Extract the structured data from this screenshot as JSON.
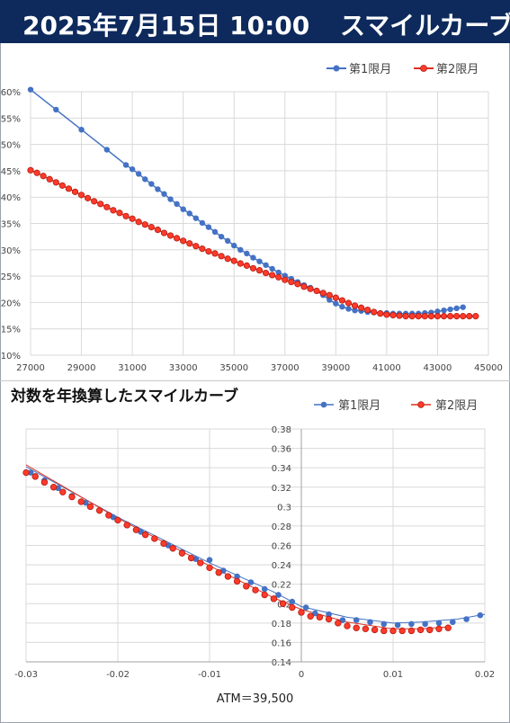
{
  "header": {
    "datetime": "2025年7月15日 10:00",
    "title": "スマイルカーブ"
  },
  "colors": {
    "series1": "#4472c4",
    "series2": "#e0301e",
    "header_bg": "#0e2a5c",
    "grid": "#d9d9d9"
  },
  "chart_data": [
    {
      "type": "line",
      "title": "",
      "xlabel": "",
      "ylabel": "",
      "xlim": [
        27000,
        45000
      ],
      "ylim": [
        10,
        60
      ],
      "xticks": [
        27000,
        29000,
        31000,
        33000,
        35000,
        37000,
        39000,
        41000,
        43000,
        45000
      ],
      "yticks": [
        10,
        15,
        20,
        25,
        30,
        35,
        40,
        45,
        50,
        55,
        60
      ],
      "ytick_labels": [
        "10%",
        "15%",
        "20%",
        "25%",
        "30%",
        "35%",
        "40%",
        "45%",
        "50%",
        "55%",
        "60%"
      ],
      "grid": true,
      "legend": "top-right",
      "series": [
        {
          "name": "第1限月",
          "x": [
            27000,
            28000,
            29000,
            30000,
            30750,
            31000,
            31250,
            31500,
            31750,
            32000,
            32250,
            32500,
            32750,
            33000,
            33250,
            33500,
            33750,
            34000,
            34250,
            34500,
            34750,
            35000,
            35250,
            35500,
            35750,
            36000,
            36250,
            36500,
            36750,
            37000,
            37250,
            37500,
            37750,
            38000,
            38250,
            38500,
            38750,
            39000,
            39250,
            39500,
            39750,
            40000,
            40250,
            40500,
            40750,
            41000,
            41250,
            41500,
            41750,
            42000,
            42250,
            42500,
            42750,
            43000,
            43250,
            43500,
            43750,
            44000
          ],
          "y": [
            60.4,
            56.6,
            52.8,
            49.0,
            46.1,
            45.3,
            44.4,
            43.4,
            42.5,
            41.5,
            40.6,
            39.6,
            38.7,
            37.7,
            36.9,
            36.0,
            35.1,
            34.3,
            33.4,
            32.5,
            31.7,
            30.8,
            30.0,
            29.3,
            28.5,
            27.8,
            27.1,
            26.4,
            25.7,
            25.1,
            24.5,
            23.9,
            23.3,
            22.8,
            22.2,
            21.4,
            20.5,
            19.8,
            19.2,
            18.8,
            18.5,
            18.4,
            18.2,
            18.1,
            18.0,
            18.0,
            17.9,
            17.9,
            17.9,
            17.9,
            17.9,
            18.0,
            18.1,
            18.3,
            18.5,
            18.7,
            18.9,
            19.1
          ]
        },
        {
          "name": "第2限月",
          "x": [
            27000,
            27250,
            27500,
            27750,
            28000,
            28250,
            28500,
            28750,
            29000,
            29250,
            29500,
            29750,
            30000,
            30250,
            30500,
            30750,
            31000,
            31250,
            31500,
            31750,
            32000,
            32250,
            32500,
            32750,
            33000,
            33250,
            33500,
            33750,
            34000,
            34250,
            34500,
            34750,
            35000,
            35250,
            35500,
            35750,
            36000,
            36250,
            36500,
            36750,
            37000,
            37250,
            37500,
            37750,
            38000,
            38250,
            38500,
            38750,
            39000,
            39250,
            39500,
            39750,
            40000,
            40250,
            40500,
            40750,
            41000,
            41250,
            41500,
            41750,
            42000,
            42250,
            42500,
            42750,
            43000,
            43250,
            43500,
            43750,
            44000,
            44250,
            44500
          ],
          "y": [
            45.1,
            44.6,
            44.0,
            43.4,
            42.8,
            42.2,
            41.6,
            41.0,
            40.4,
            39.8,
            39.2,
            38.7,
            38.1,
            37.5,
            37.0,
            36.4,
            35.9,
            35.3,
            34.8,
            34.3,
            33.8,
            33.2,
            32.7,
            32.2,
            31.7,
            31.2,
            30.7,
            30.2,
            29.7,
            29.3,
            28.8,
            28.3,
            27.9,
            27.4,
            27.0,
            26.5,
            26.1,
            25.6,
            25.2,
            24.8,
            24.3,
            23.9,
            23.5,
            23.0,
            22.6,
            22.2,
            21.8,
            21.4,
            20.9,
            20.4,
            19.9,
            19.4,
            19.0,
            18.6,
            18.2,
            17.9,
            17.7,
            17.6,
            17.5,
            17.4,
            17.4,
            17.4,
            17.4,
            17.4,
            17.4,
            17.4,
            17.4,
            17.4,
            17.4,
            17.4,
            17.4
          ]
        }
      ]
    },
    {
      "type": "scatter",
      "title": "対数を年換算したスマイルカーブ",
      "xlabel": "ATM＝39,500",
      "ylabel": "",
      "xlim": [
        -0.03,
        0.02
      ],
      "ylim": [
        0.14,
        0.38
      ],
      "xticks": [
        -0.03,
        -0.02,
        -0.01,
        0,
        0.01,
        0.02
      ],
      "xtick_labels": [
        "-0.03",
        "-0.02",
        "-0.01",
        "0",
        "0.01",
        "0.02"
      ],
      "yticks": [
        0.14,
        0.16,
        0.18,
        0.2,
        0.22,
        0.24,
        0.26,
        0.28,
        0.3,
        0.32,
        0.34,
        0.36,
        0.38
      ],
      "ytick_labels": [
        "0.14",
        "0.16",
        "0.18",
        "0.2",
        "0.22",
        "0.24",
        "0.26",
        "0.28",
        "0.3",
        "0.32",
        "0.34",
        "0.36",
        "0.38"
      ],
      "grid": true,
      "legend": "top-right",
      "series": [
        {
          "name": "第1限月",
          "x": [
            -0.0295,
            -0.028,
            -0.0265,
            -0.025,
            -0.0235,
            -0.022,
            -0.0205,
            -0.019,
            -0.0175,
            -0.016,
            -0.0145,
            -0.013,
            -0.0115,
            -0.01,
            -0.0085,
            -0.007,
            -0.0055,
            -0.004,
            -0.0025,
            -0.001,
            0.0005,
            0.0015,
            0.003,
            0.0045,
            0.006,
            0.0075,
            0.009,
            0.0105,
            0.012,
            0.0135,
            0.015,
            0.0165,
            0.018,
            0.0195
          ],
          "y": [
            0.335,
            0.327,
            0.319,
            0.311,
            0.304,
            0.296,
            0.289,
            0.281,
            0.274,
            0.267,
            0.26,
            0.253,
            0.246,
            0.245,
            0.234,
            0.228,
            0.222,
            0.215,
            0.209,
            0.202,
            0.196,
            0.19,
            0.189,
            0.183,
            0.183,
            0.181,
            0.179,
            0.178,
            0.179,
            0.179,
            0.18,
            0.181,
            0.184,
            0.188
          ]
        },
        {
          "name": "第2限月",
          "x": [
            -0.03,
            -0.029,
            -0.028,
            -0.027,
            -0.026,
            -0.025,
            -0.024,
            -0.023,
            -0.022,
            -0.021,
            -0.02,
            -0.019,
            -0.018,
            -0.017,
            -0.016,
            -0.015,
            -0.014,
            -0.013,
            -0.012,
            -0.011,
            -0.01,
            -0.009,
            -0.008,
            -0.007,
            -0.006,
            -0.005,
            -0.004,
            -0.003,
            -0.002,
            -0.001,
            0.0,
            0.001,
            0.002,
            0.003,
            0.004,
            0.005,
            0.006,
            0.007,
            0.008,
            0.009,
            0.01,
            0.011,
            0.012,
            0.013,
            0.014,
            0.015,
            0.016
          ],
          "y": [
            0.335,
            0.331,
            0.325,
            0.32,
            0.315,
            0.31,
            0.305,
            0.3,
            0.296,
            0.291,
            0.286,
            0.281,
            0.276,
            0.271,
            0.267,
            0.262,
            0.257,
            0.252,
            0.247,
            0.242,
            0.237,
            0.232,
            0.228,
            0.223,
            0.218,
            0.214,
            0.209,
            0.205,
            0.2,
            0.196,
            0.191,
            0.187,
            0.186,
            0.184,
            0.18,
            0.177,
            0.175,
            0.174,
            0.173,
            0.172,
            0.172,
            0.172,
            0.172,
            0.173,
            0.173,
            0.174,
            0.175
          ]
        }
      ]
    }
  ]
}
